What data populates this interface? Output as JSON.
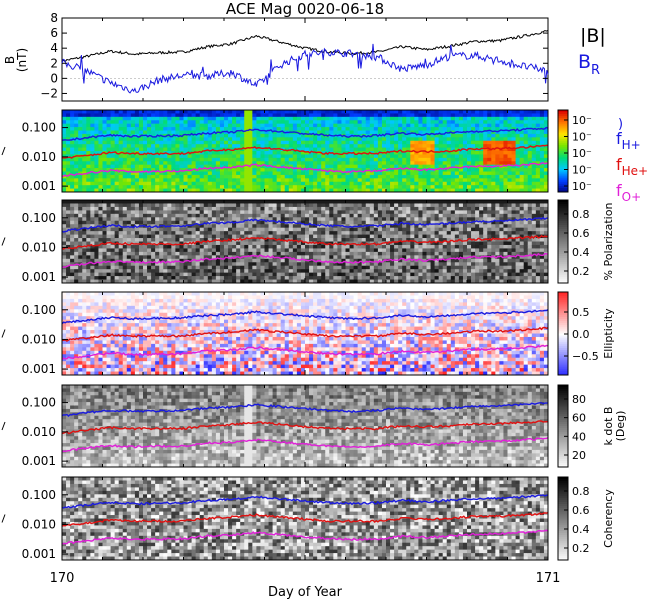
{
  "title": "ACE Mag 0020-06-18",
  "legend_b": {
    "b_total": "|B|",
    "b_r": "B",
    "b_r_sub": "R"
  },
  "legend_f": [
    {
      "main": "f",
      "sub": "H+",
      "color": "#1a1adf"
    },
    {
      "main": "f",
      "sub": "He+",
      "color": "#e01010"
    },
    {
      "main": "f",
      "sub": "O+",
      "color": "#e020d8"
    }
  ],
  "xaxis": {
    "label": "Day of Year",
    "ticks": [
      "170",
      "171"
    ],
    "range": [
      170,
      171
    ]
  },
  "colors": {
    "b_total": "#000000",
    "b_r": "#1a1adf",
    "fh": "#1a1adf",
    "fhe": "#e01010",
    "fo": "#e020d8"
  },
  "chart_data": [
    {
      "type": "line",
      "panel": "magnetic-field",
      "ylabel": "B (nT)",
      "ylabel_main": "B",
      "ylabel_unit": "(nT)",
      "ylim": [
        -3,
        8
      ],
      "yticks": [
        "8",
        "6",
        "4",
        "2",
        "0",
        "−2"
      ],
      "ytick_values": [
        8,
        6,
        4,
        2,
        0,
        -2
      ],
      "x": [
        170.0,
        170.05,
        170.1,
        170.15,
        170.2,
        170.25,
        170.3,
        170.35,
        170.4,
        170.45,
        170.5,
        170.55,
        170.6,
        170.65,
        170.7,
        170.75,
        170.8,
        170.85,
        170.9,
        170.95,
        171.0
      ],
      "series": [
        {
          "name": "|B|",
          "values": [
            2.3,
            2.9,
            3.6,
            3.2,
            3.4,
            3.5,
            4.2,
            4.6,
            5.6,
            4.8,
            4.0,
            3.5,
            3.3,
            3.5,
            4.2,
            3.8,
            4.3,
            4.9,
            5.0,
            5.6,
            6.3
          ]
        },
        {
          "name": "B_R",
          "values": [
            2.1,
            1.0,
            -0.6,
            -1.7,
            -0.2,
            0.4,
            0.3,
            0.8,
            -1.0,
            1.8,
            3.2,
            3.5,
            3.3,
            2.8,
            1.2,
            1.8,
            3.0,
            3.0,
            2.4,
            1.6,
            1.0
          ]
        }
      ]
    },
    {
      "type": "heatmap",
      "panel": "power-spectrum",
      "colorbar": {
        "palette": "rainbow",
        "tick_labels": [
          "10⁻",
          "10⁻",
          "10⁻",
          "10⁻",
          "10⁻"
        ]
      },
      "yticks": [
        "0.100",
        "0.010",
        "0.001"
      ]
    },
    {
      "type": "heatmap",
      "panel": "polarization",
      "colorbar": {
        "palette": "grayscale",
        "label": "% Polarization",
        "tick_labels": [
          "0.8",
          "0.6",
          "0.4",
          "0.2"
        ]
      },
      "yticks": [
        "0.100",
        "0.010",
        "0.001"
      ]
    },
    {
      "type": "heatmap",
      "panel": "ellipticity",
      "colorbar": {
        "palette": "blue-white-red",
        "label": "Ellipticity",
        "tick_labels": [
          "0.5",
          "0.0",
          "−0.5"
        ]
      },
      "yticks": [
        "0.100",
        "0.010",
        "0.001"
      ]
    },
    {
      "type": "heatmap",
      "panel": "k-dot-b",
      "colorbar": {
        "palette": "grayscale",
        "label": "k dot B",
        "label2": "(Deg)",
        "tick_labels": [
          "80",
          "60",
          "40",
          "20"
        ]
      },
      "yticks": [
        "0.100",
        "0.010",
        "0.001"
      ]
    },
    {
      "type": "heatmap",
      "panel": "coherency",
      "colorbar": {
        "palette": "grayscale",
        "label": "Coherency",
        "tick_labels": [
          "0.8",
          "0.6",
          "0.4",
          "0.2"
        ]
      },
      "yticks": [
        "0.100",
        "0.010",
        "0.001"
      ]
    }
  ],
  "gyro_lines": {
    "ylim_log": [
      -3.2,
      -0.4
    ],
    "x": [
      170.0,
      170.05,
      170.1,
      170.15,
      170.2,
      170.25,
      170.3,
      170.35,
      170.4,
      170.45,
      170.5,
      170.55,
      170.6,
      170.65,
      170.7,
      170.75,
      170.8,
      170.85,
      170.9,
      170.95,
      171.0
    ],
    "fH": [
      0.035,
      0.045,
      0.055,
      0.05,
      0.052,
      0.054,
      0.065,
      0.07,
      0.085,
      0.073,
      0.062,
      0.054,
      0.05,
      0.054,
      0.065,
      0.058,
      0.066,
      0.075,
      0.077,
      0.086,
      0.096
    ],
    "fHe": [
      0.009,
      0.011,
      0.014,
      0.013,
      0.013,
      0.013,
      0.016,
      0.018,
      0.021,
      0.018,
      0.015,
      0.013,
      0.013,
      0.013,
      0.016,
      0.015,
      0.016,
      0.019,
      0.019,
      0.021,
      0.024
    ],
    "fO": [
      0.0022,
      0.0028,
      0.0034,
      0.0031,
      0.0032,
      0.0033,
      0.0041,
      0.0044,
      0.0053,
      0.0045,
      0.0038,
      0.0033,
      0.0031,
      0.0033,
      0.004,
      0.0036,
      0.0041,
      0.0047,
      0.0048,
      0.0053,
      0.006
    ]
  }
}
